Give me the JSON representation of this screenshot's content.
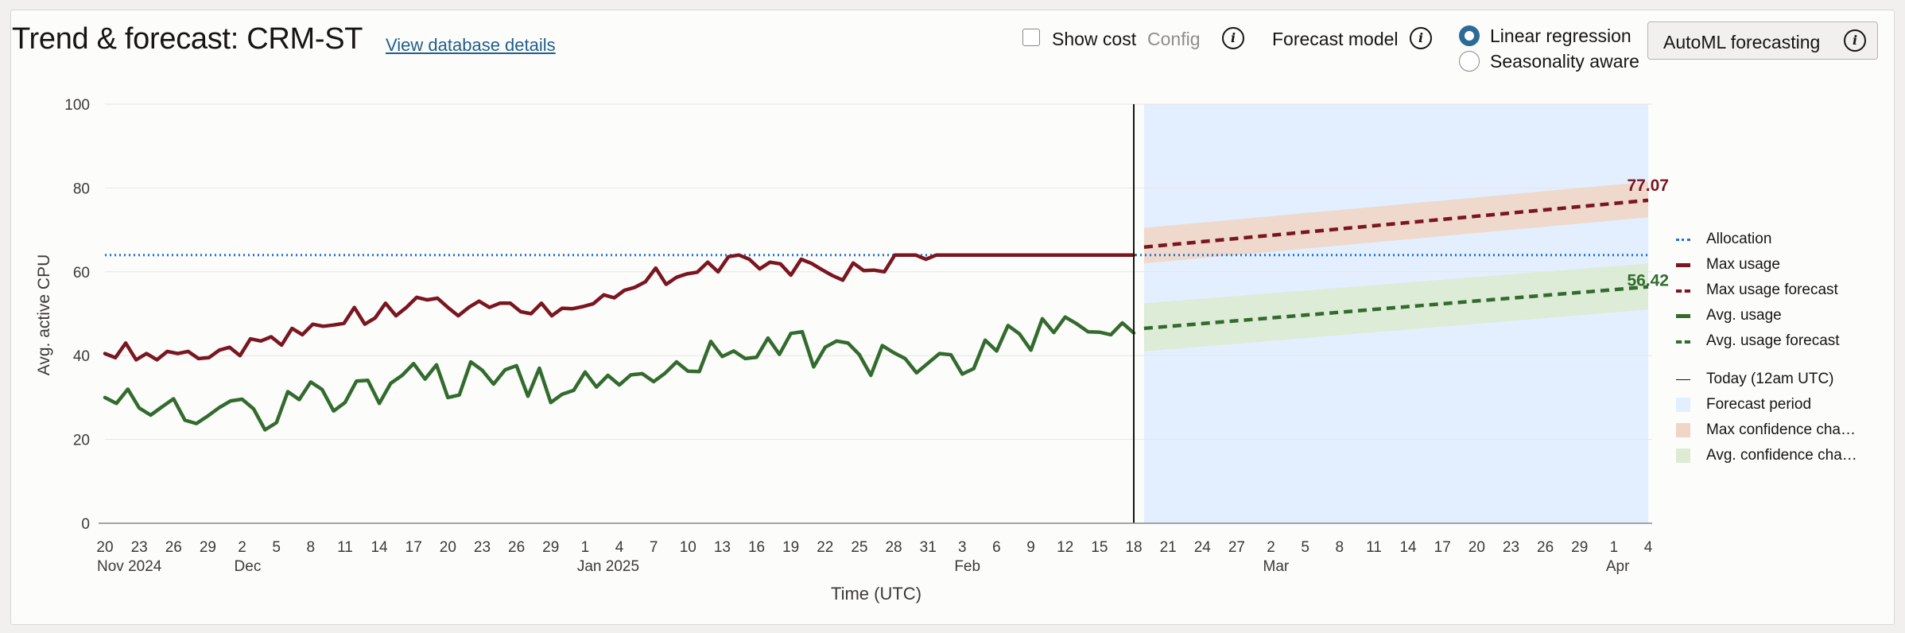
{
  "header": {
    "title": "Trend & forecast: CRM-ST",
    "db_link": "View database details",
    "show_cost": "Show cost",
    "config": "Config",
    "forecast_model_label": "Forecast model",
    "radio_options": [
      {
        "label": "Linear regression",
        "selected": true
      },
      {
        "label": "Seasonality aware",
        "selected": false
      }
    ],
    "automl_button": "AutoML forecasting"
  },
  "legend": {
    "items": [
      {
        "label": "Allocation",
        "color": "#1f74d1",
        "style": "dotted"
      },
      {
        "label": "Max usage",
        "color": "#7a1620",
        "style": "solid"
      },
      {
        "label": "Max usage forecast",
        "color": "#7a1620",
        "style": "dashed"
      },
      {
        "label": "Avg. usage",
        "color": "#336b2e",
        "style": "solid"
      },
      {
        "label": "Avg. usage forecast",
        "color": "#336b2e",
        "style": "dashed"
      },
      {
        "label": "Today (12am UTC)",
        "color": "#161513",
        "style": "thin"
      },
      {
        "label": "Forecast period",
        "color": "#e3efff",
        "style": "box"
      },
      {
        "label": "Max confidence cha…",
        "color": "#efd6c7",
        "style": "box"
      },
      {
        "label": "Avg. confidence cha…",
        "color": "#dcebd2",
        "style": "box"
      }
    ]
  },
  "chart_data": {
    "type": "line",
    "ylabel": "Avg. active CPU",
    "xlabel": "Time (UTC)",
    "ylim": [
      0,
      100
    ],
    "yticks": [
      0,
      20,
      40,
      60,
      80,
      100
    ],
    "grid": true,
    "legend_position": "right",
    "x_tick_labels": [
      "20",
      "23",
      "26",
      "29",
      "2",
      "5",
      "8",
      "11",
      "14",
      "17",
      "20",
      "23",
      "26",
      "29",
      "1",
      "4",
      "7",
      "10",
      "13",
      "16",
      "19",
      "22",
      "25",
      "28",
      "31",
      "3",
      "6",
      "9",
      "12",
      "15",
      "18",
      "21",
      "24",
      "27",
      "2",
      "5",
      "8",
      "11",
      "14",
      "17",
      "20",
      "23",
      "26",
      "29",
      "1",
      "4"
    ],
    "month_labels": [
      {
        "label": "Nov 2024",
        "tick_index": 0
      },
      {
        "label": "Dec",
        "tick_index": 4
      },
      {
        "label": "Jan 2025",
        "tick_index": 14
      },
      {
        "label": "Feb",
        "tick_index": 25
      },
      {
        "label": "Mar",
        "tick_index": 34
      },
      {
        "label": "Apr",
        "tick_index": 44
      }
    ],
    "allocation": 64,
    "today_tick_index": 30,
    "forecast_period_tick_range": [
      30.3,
      45
    ],
    "series": [
      {
        "name": "Max usage",
        "color": "#7a1620",
        "values": [
          40.5,
          39.5,
          43,
          39,
          40.5,
          39,
          41,
          40.5,
          41,
          39.3,
          39.5,
          41.3,
          42,
          40,
          44,
          43.5,
          44.5,
          42.5,
          46.5,
          45,
          47.5,
          47,
          47.3,
          47.7,
          51.5,
          47.5,
          49,
          52.5,
          49.5,
          51.5,
          53.9,
          53.3,
          53.7,
          51.5,
          49.5,
          51.5,
          53,
          51.5,
          52.5,
          52.5,
          50.5,
          50,
          52.5,
          49.5,
          51.3,
          51.2,
          51.7,
          52.4,
          54.5,
          53.8,
          55.6,
          56.3,
          57.6,
          60.9,
          57,
          58.7,
          59.5,
          59.9,
          62.3,
          60,
          63.6,
          64,
          63,
          60.7,
          62.3,
          61.9,
          59.2,
          63,
          62,
          60.5,
          59.1,
          58,
          62.1,
          60.3,
          60.4,
          60,
          64,
          64,
          64,
          63,
          64,
          64,
          64,
          64,
          64,
          64,
          64,
          64,
          64,
          64,
          64,
          64,
          64,
          64,
          64,
          64,
          64,
          64,
          64,
          64
        ]
      },
      {
        "name": "Avg. usage",
        "color": "#336b2e",
        "values": [
          30,
          28.6,
          32,
          27.5,
          25.8,
          27.8,
          29.7,
          24.6,
          23.8,
          25.6,
          27.6,
          29.2,
          29.6,
          27.3,
          22.3,
          24,
          31.4,
          29.5,
          33.7,
          31.9,
          26.8,
          28.8,
          33.9,
          34.1,
          28.6,
          33.4,
          35.3,
          38.1,
          34.4,
          37.8,
          30,
          30.6,
          38.5,
          36.5,
          33.2,
          36.6,
          37.6,
          30.3,
          37,
          28.8,
          30.8,
          31.7,
          36.1,
          32.5,
          35.3,
          33,
          35.4,
          35.7,
          33.8,
          35.8,
          38.5,
          36.3,
          36.2,
          43.4,
          39.8,
          41.1,
          39.3,
          39.6,
          44.2,
          40.3,
          45.3,
          45.7,
          37.3,
          42,
          43.5,
          43,
          40.2,
          35.3,
          42.4,
          40.7,
          39.3,
          35.9,
          38.2,
          40.5,
          40.2,
          35.6,
          36.9,
          43.7,
          41.1,
          47.2,
          45.2,
          41.3,
          48.8,
          45.5,
          49.2,
          47.6,
          45.7,
          45.6,
          45,
          47.8,
          45.4
        ]
      },
      {
        "name": "Max usage forecast",
        "color": "#7a1620",
        "start_value": 65.9,
        "end_value": 77.07,
        "end_label": "77.07"
      },
      {
        "name": "Avg. usage forecast",
        "color": "#336b2e",
        "start_value": 46.5,
        "end_value": 56.42,
        "end_label": "56.42"
      }
    ],
    "confidence_bands": [
      {
        "name": "Max confidence",
        "color": "#efd6c7",
        "start": [
          62,
          70.5
        ],
        "end": [
          73,
          81.5
        ]
      },
      {
        "name": "Avg. confidence",
        "color": "#dcebd2",
        "start": [
          41,
          52.5
        ],
        "end": [
          51,
          62
        ]
      }
    ]
  }
}
